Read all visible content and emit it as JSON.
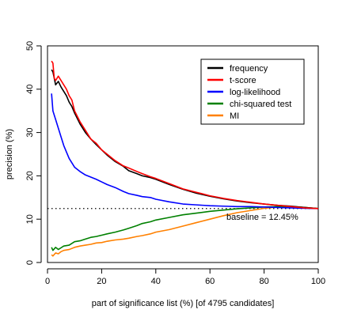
{
  "chart_data": {
    "type": "line",
    "xlabel": "part of significance list (%) [of 4795 candidates]",
    "ylabel": "precision (%)",
    "xlim": [
      0,
      100
    ],
    "ylim": [
      0,
      50
    ],
    "xticks": [
      0,
      20,
      40,
      60,
      80,
      100
    ],
    "yticks": [
      0,
      10,
      20,
      30,
      40,
      50
    ],
    "legend_position": "top-right",
    "grid": false,
    "baseline": {
      "value": 12.45,
      "label": "baseline = 12.45%"
    },
    "series": [
      {
        "name": "frequency",
        "color": "#000000",
        "x": [
          1.5,
          2,
          3,
          4,
          5,
          6,
          7,
          8,
          9,
          10,
          12,
          14,
          16,
          18,
          20,
          22,
          25,
          28,
          30,
          33,
          35,
          38,
          40,
          45,
          50,
          55,
          60,
          65,
          70,
          75,
          80,
          85,
          90,
          95,
          100
        ],
        "y": [
          44.5,
          44.0,
          41.0,
          41.8,
          40.5,
          39.5,
          38.5,
          37.0,
          36.0,
          34.5,
          32.0,
          30.0,
          28.5,
          27.2,
          26.0,
          24.8,
          23.3,
          22.2,
          21.2,
          20.5,
          20.0,
          19.6,
          19.2,
          18.0,
          16.9,
          16.0,
          15.3,
          14.7,
          14.2,
          13.8,
          13.5,
          13.2,
          13.0,
          12.7,
          12.45
        ]
      },
      {
        "name": "t-score",
        "color": "#ff0000",
        "x": [
          1.5,
          2,
          2.5,
          3,
          4,
          5,
          6,
          7,
          8,
          9,
          10,
          12,
          14,
          16,
          18,
          20,
          22,
          25,
          28,
          30,
          33,
          35,
          38,
          40,
          45,
          50,
          55,
          60,
          65,
          70,
          75,
          80,
          85,
          90,
          95,
          100
        ],
        "y": [
          46.5,
          46.0,
          42.5,
          42.0,
          43.0,
          42.0,
          41.0,
          40.0,
          38.5,
          37.5,
          35.0,
          32.5,
          30.5,
          28.5,
          27.5,
          26.0,
          25.0,
          23.5,
          22.3,
          21.8,
          21.0,
          20.5,
          19.8,
          19.4,
          18.2,
          17.0,
          16.2,
          15.4,
          14.8,
          14.3,
          13.9,
          13.5,
          13.2,
          12.9,
          12.6,
          12.45
        ]
      },
      {
        "name": "log-likelihood",
        "color": "#0000ff",
        "x": [
          1.5,
          2,
          3,
          4,
          5,
          6,
          7,
          8,
          9,
          10,
          12,
          14,
          16,
          18,
          20,
          22,
          25,
          28,
          30,
          33,
          35,
          38,
          40,
          45,
          50,
          55,
          60,
          65,
          70,
          75,
          80,
          85,
          90,
          95,
          100
        ],
        "y": [
          39.0,
          35.0,
          33.0,
          31.0,
          29.0,
          27.0,
          25.5,
          24.0,
          23.0,
          22.0,
          21.0,
          20.2,
          19.7,
          19.2,
          18.6,
          18.0,
          17.3,
          16.4,
          15.9,
          15.5,
          15.2,
          15.0,
          14.6,
          14.0,
          13.5,
          13.3,
          13.1,
          13.0,
          12.9,
          12.9,
          12.8,
          12.7,
          12.6,
          12.5,
          12.45
        ]
      },
      {
        "name": "chi-squared test",
        "color": "#008000",
        "x": [
          1.5,
          2,
          3,
          4,
          5,
          6,
          8,
          10,
          12,
          14,
          16,
          18,
          20,
          22,
          25,
          28,
          30,
          33,
          35,
          38,
          40,
          45,
          50,
          55,
          60,
          65,
          70,
          75,
          80,
          85,
          90,
          95,
          100
        ],
        "y": [
          3.5,
          2.8,
          3.5,
          3.0,
          3.4,
          3.8,
          4.0,
          4.8,
          5.0,
          5.4,
          5.8,
          6.0,
          6.3,
          6.6,
          7.0,
          7.5,
          7.9,
          8.5,
          9.0,
          9.4,
          9.8,
          10.4,
          11.0,
          11.4,
          11.8,
          12.1,
          12.4,
          12.6,
          12.8,
          12.9,
          12.9,
          12.7,
          12.45
        ]
      },
      {
        "name": "MI",
        "color": "#ff8000",
        "x": [
          1.5,
          2,
          3,
          4,
          5,
          6,
          8,
          10,
          12,
          14,
          16,
          18,
          20,
          22,
          25,
          28,
          30,
          33,
          35,
          38,
          40,
          45,
          50,
          55,
          60,
          65,
          70,
          75,
          80,
          85,
          90,
          95,
          100
        ],
        "y": [
          1.8,
          1.5,
          2.2,
          2.0,
          2.5,
          2.8,
          3.0,
          3.5,
          3.8,
          4.0,
          4.2,
          4.5,
          4.6,
          4.9,
          5.2,
          5.4,
          5.6,
          6.0,
          6.2,
          6.6,
          7.0,
          7.6,
          8.4,
          9.2,
          10.0,
          10.8,
          11.5,
          12.0,
          12.5,
          12.8,
          12.9,
          12.7,
          12.45
        ]
      }
    ]
  }
}
